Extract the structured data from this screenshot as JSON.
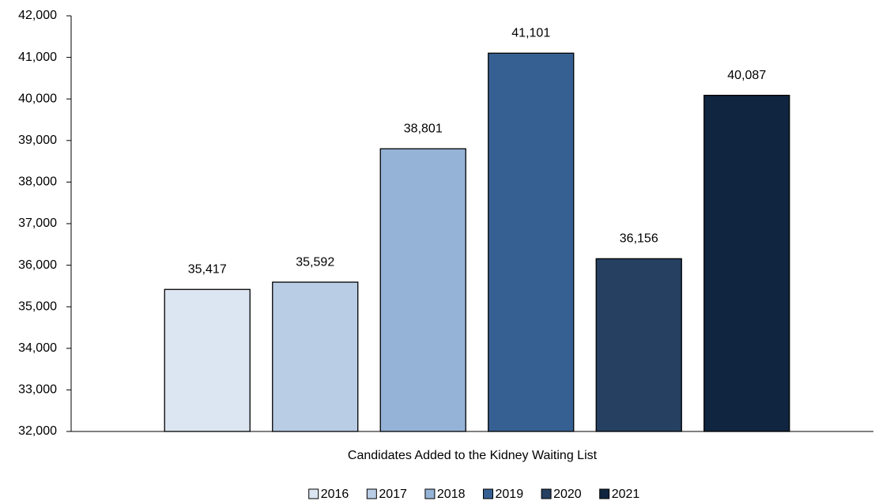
{
  "chart_data": {
    "type": "bar",
    "categories": [
      "Candidates Added to the Kidney Waiting List"
    ],
    "series": [
      {
        "name": "2016",
        "color": "#dce6f2",
        "values": [
          35417
        ],
        "value_labels": [
          "35,417"
        ]
      },
      {
        "name": "2017",
        "color": "#b9cde5",
        "values": [
          35592
        ],
        "value_labels": [
          "35,592"
        ]
      },
      {
        "name": "2018",
        "color": "#95b3d7",
        "values": [
          38801
        ],
        "value_labels": [
          "38,801"
        ]
      },
      {
        "name": "2019",
        "color": "#376092",
        "values": [
          41101
        ],
        "value_labels": [
          "41,101"
        ]
      },
      {
        "name": "2020",
        "color": "#254061",
        "values": [
          36156
        ],
        "value_labels": [
          "36,156"
        ]
      },
      {
        "name": "2021",
        "color": "#10253f",
        "values": [
          40087
        ],
        "value_labels": [
          "40,087"
        ]
      }
    ],
    "ylim": [
      32000,
      42000
    ],
    "yticks": [
      {
        "value": 32000,
        "label": "32,000"
      },
      {
        "value": 33000,
        "label": "33,000"
      },
      {
        "value": 34000,
        "label": "34,000"
      },
      {
        "value": 35000,
        "label": "35,000"
      },
      {
        "value": 36000,
        "label": "36,000"
      },
      {
        "value": 37000,
        "label": "37,000"
      },
      {
        "value": 38000,
        "label": "38,000"
      },
      {
        "value": 39000,
        "label": "39,000"
      },
      {
        "value": 40000,
        "label": "40,000"
      },
      {
        "value": 41000,
        "label": "41,000"
      },
      {
        "value": 42000,
        "label": "42,000"
      }
    ],
    "grid": false,
    "legend": "bottom"
  }
}
